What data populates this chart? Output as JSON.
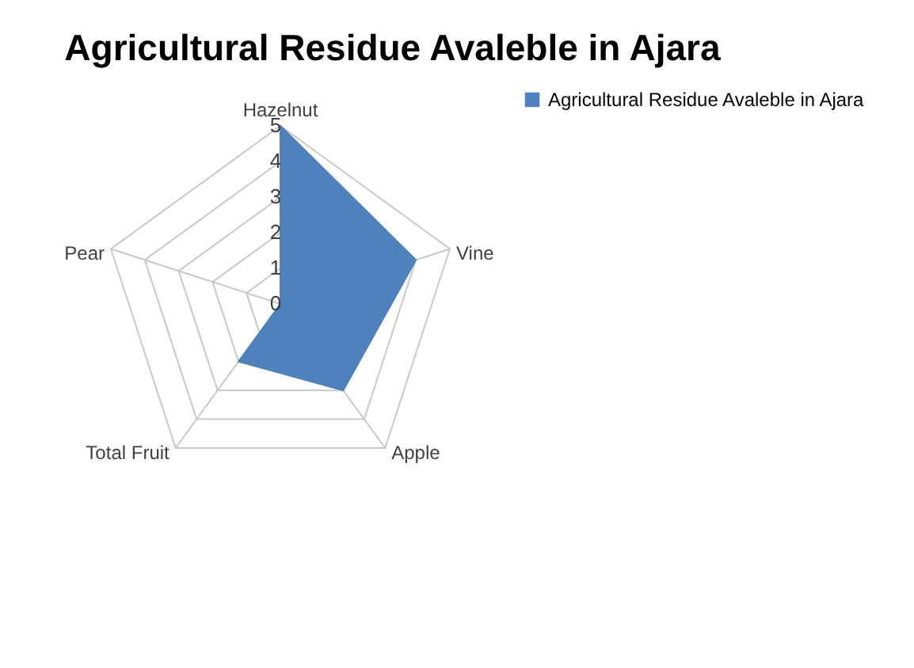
{
  "chart_data": {
    "type": "radar",
    "title": "Agricultural Residue Avaleble in Ajara",
    "categories": [
      "Hazelnut",
      "Vine",
      "Apple",
      "Total Fruit",
      "Pear"
    ],
    "series": [
      {
        "name": "Agricultural Residue Avaleble in Ajara",
        "color": "#4f81bd",
        "values": [
          5,
          4,
          3,
          2,
          0
        ]
      }
    ],
    "ylim": [
      0,
      5
    ],
    "yticks": [
      0,
      1,
      2,
      3,
      4,
      5
    ],
    "grid": true,
    "legend": "right"
  }
}
